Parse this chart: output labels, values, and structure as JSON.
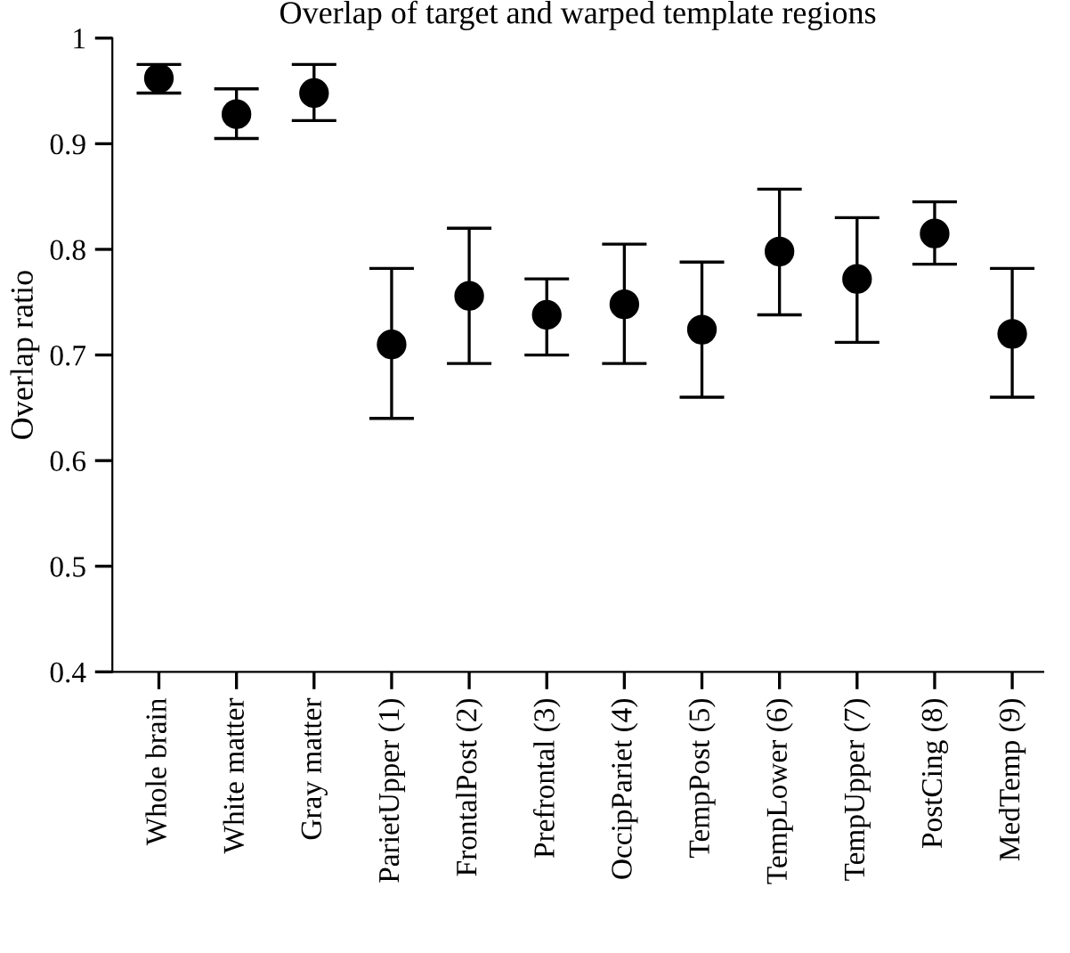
{
  "chart_data": {
    "type": "scatter",
    "title": "Overlap of target and warped template regions",
    "ylabel": "Overlap ratio",
    "categories": [
      "Whole brain",
      "White matter",
      "Gray matter",
      "ParietUpper (1)",
      "FrontalPost (2)",
      "Prefrontal (3)",
      "OccipPariet (4)",
      "TempPost (5)",
      "TempLower (6)",
      "TempUpper (7)",
      "PostCing (8)",
      "MedTemp (9)"
    ],
    "series": [
      {
        "color": "#000000",
        "values": [
          0.962,
          0.928,
          0.948,
          0.71,
          0.756,
          0.738,
          0.748,
          0.724,
          0.798,
          0.772,
          0.815,
          0.72
        ],
        "errors": [
          [
            0.948,
            0.975
          ],
          [
            0.905,
            0.952
          ],
          [
            0.922,
            0.975
          ],
          [
            0.64,
            0.782
          ],
          [
            0.692,
            0.82
          ],
          [
            0.7,
            0.772
          ],
          [
            0.692,
            0.805
          ],
          [
            0.66,
            0.788
          ],
          [
            0.738,
            0.857
          ],
          [
            0.712,
            0.83
          ],
          [
            0.786,
            0.845
          ],
          [
            0.66,
            0.782
          ]
        ]
      }
    ],
    "ylim": [
      0.4,
      1
    ],
    "yticks": [
      0.4,
      0.5,
      0.6,
      0.7,
      0.8,
      0.9,
      1
    ],
    "marker": "circle",
    "grid": false,
    "legend": false
  }
}
